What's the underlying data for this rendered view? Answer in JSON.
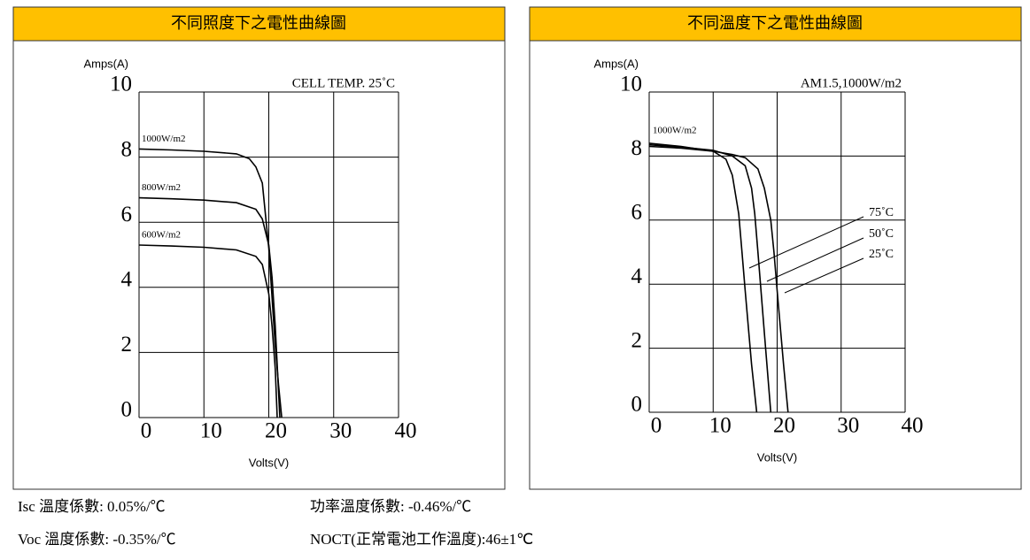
{
  "chart_data": [
    {
      "type": "line",
      "title": "不同照度下之電性曲線圖",
      "annotation": "CELL TEMP. 25˚C",
      "x_label": "Volts(V)",
      "y_label": "Amps(A)",
      "xlim": [
        0,
        40
      ],
      "ylim": [
        0,
        10
      ],
      "xticks": [
        0,
        10,
        20,
        30,
        40
      ],
      "yticks": [
        0,
        2,
        4,
        6,
        8,
        10
      ],
      "grid": true,
      "series": [
        {
          "name": "1000W/m2",
          "color": "#000000",
          "x": [
            0,
            5,
            10,
            15,
            17,
            18,
            19,
            20,
            21,
            21.5,
            22
          ],
          "values": [
            8.25,
            8.22,
            8.18,
            8.1,
            7.95,
            7.7,
            7.2,
            5.2,
            2.2,
            1.0,
            0
          ]
        },
        {
          "name": "800W/m2",
          "color": "#000000",
          "x": [
            0,
            5,
            10,
            15,
            18,
            19,
            20,
            20.5,
            21,
            21.7
          ],
          "values": [
            6.75,
            6.72,
            6.68,
            6.6,
            6.4,
            6.1,
            5.3,
            4.3,
            2.8,
            0
          ]
        },
        {
          "name": "600W/m2",
          "color": "#000000",
          "x": [
            0,
            5,
            10,
            15,
            18,
            19,
            20,
            20.5,
            21,
            21.3
          ],
          "values": [
            5.3,
            5.27,
            5.23,
            5.15,
            4.95,
            4.7,
            3.8,
            2.8,
            1.5,
            0
          ]
        }
      ]
    },
    {
      "type": "line",
      "title": "不同溫度下之電性曲線圖",
      "annotation": "AM1.5,1000W/m2",
      "curve_label": "1000W/m2",
      "x_label": "Volts(V)",
      "y_label": "Amps(A)",
      "xlim": [
        0,
        40
      ],
      "ylim": [
        0,
        10
      ],
      "xticks": [
        0,
        10,
        20,
        30,
        40
      ],
      "yticks": [
        0,
        2,
        4,
        6,
        8,
        10
      ],
      "grid": true,
      "series": [
        {
          "name": "75˚C",
          "color": "#000000",
          "x": [
            0,
            5,
            10,
            12,
            13,
            14,
            14.5,
            15,
            16,
            16.8
          ],
          "values": [
            8.4,
            8.3,
            8.15,
            7.9,
            7.4,
            6.2,
            5.0,
            3.8,
            1.5,
            0
          ]
        },
        {
          "name": "50˚C",
          "color": "#000000",
          "x": [
            0,
            5,
            10,
            13,
            15,
            16,
            16.5,
            17,
            18,
            19
          ],
          "values": [
            8.35,
            8.28,
            8.18,
            8.0,
            7.7,
            7.0,
            6.2,
            5.0,
            2.5,
            0
          ]
        },
        {
          "name": "25˚C",
          "color": "#000000",
          "x": [
            0,
            5,
            10,
            13,
            15,
            17,
            18,
            19,
            19.5,
            20,
            21,
            21.7
          ],
          "values": [
            8.3,
            8.25,
            8.15,
            8.05,
            7.95,
            7.6,
            7.0,
            6.0,
            5.0,
            3.8,
            1.5,
            0
          ]
        }
      ]
    }
  ],
  "footer": [
    "Isc 溫度係數: 0.05%/℃",
    "功率溫度係數: -0.46%/℃",
    "Voc 溫度係數: -0.35%/℃",
    "NOCT(正常電池工作溫度):46±1℃"
  ]
}
